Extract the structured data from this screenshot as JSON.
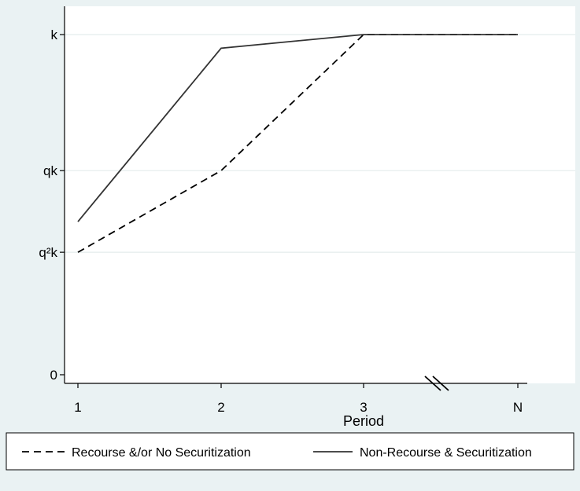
{
  "chart_data": {
    "type": "line",
    "title": "",
    "xlabel": "Period",
    "ylabel": "",
    "x_categories": [
      "1",
      "2",
      "3",
      "N"
    ],
    "y_ticks": [
      {
        "label": "0",
        "value": 0
      },
      {
        "label": "q²k",
        "value": 0.36
      },
      {
        "label": "qk",
        "value": 0.6
      },
      {
        "label": "k",
        "value": 1
      }
    ],
    "ylim": [
      -0.02,
      1.0
    ],
    "grid": true,
    "axis_break": "between 3 and N",
    "legend_position": "bottom",
    "series": [
      {
        "name": "Recourse &/or No Securitization",
        "style": "dashed",
        "color": "#000000",
        "values": [
          0.36,
          0.6,
          1.0,
          1.0
        ]
      },
      {
        "name": "Non-Recourse & Securitization",
        "style": "solid",
        "color": "#333333",
        "values": [
          0.45,
          0.96,
          1.0,
          1.0
        ]
      }
    ]
  },
  "colors": {
    "background": "#eaf2f3",
    "plot_area": "#ffffff",
    "gridline": "#e3ecec"
  }
}
